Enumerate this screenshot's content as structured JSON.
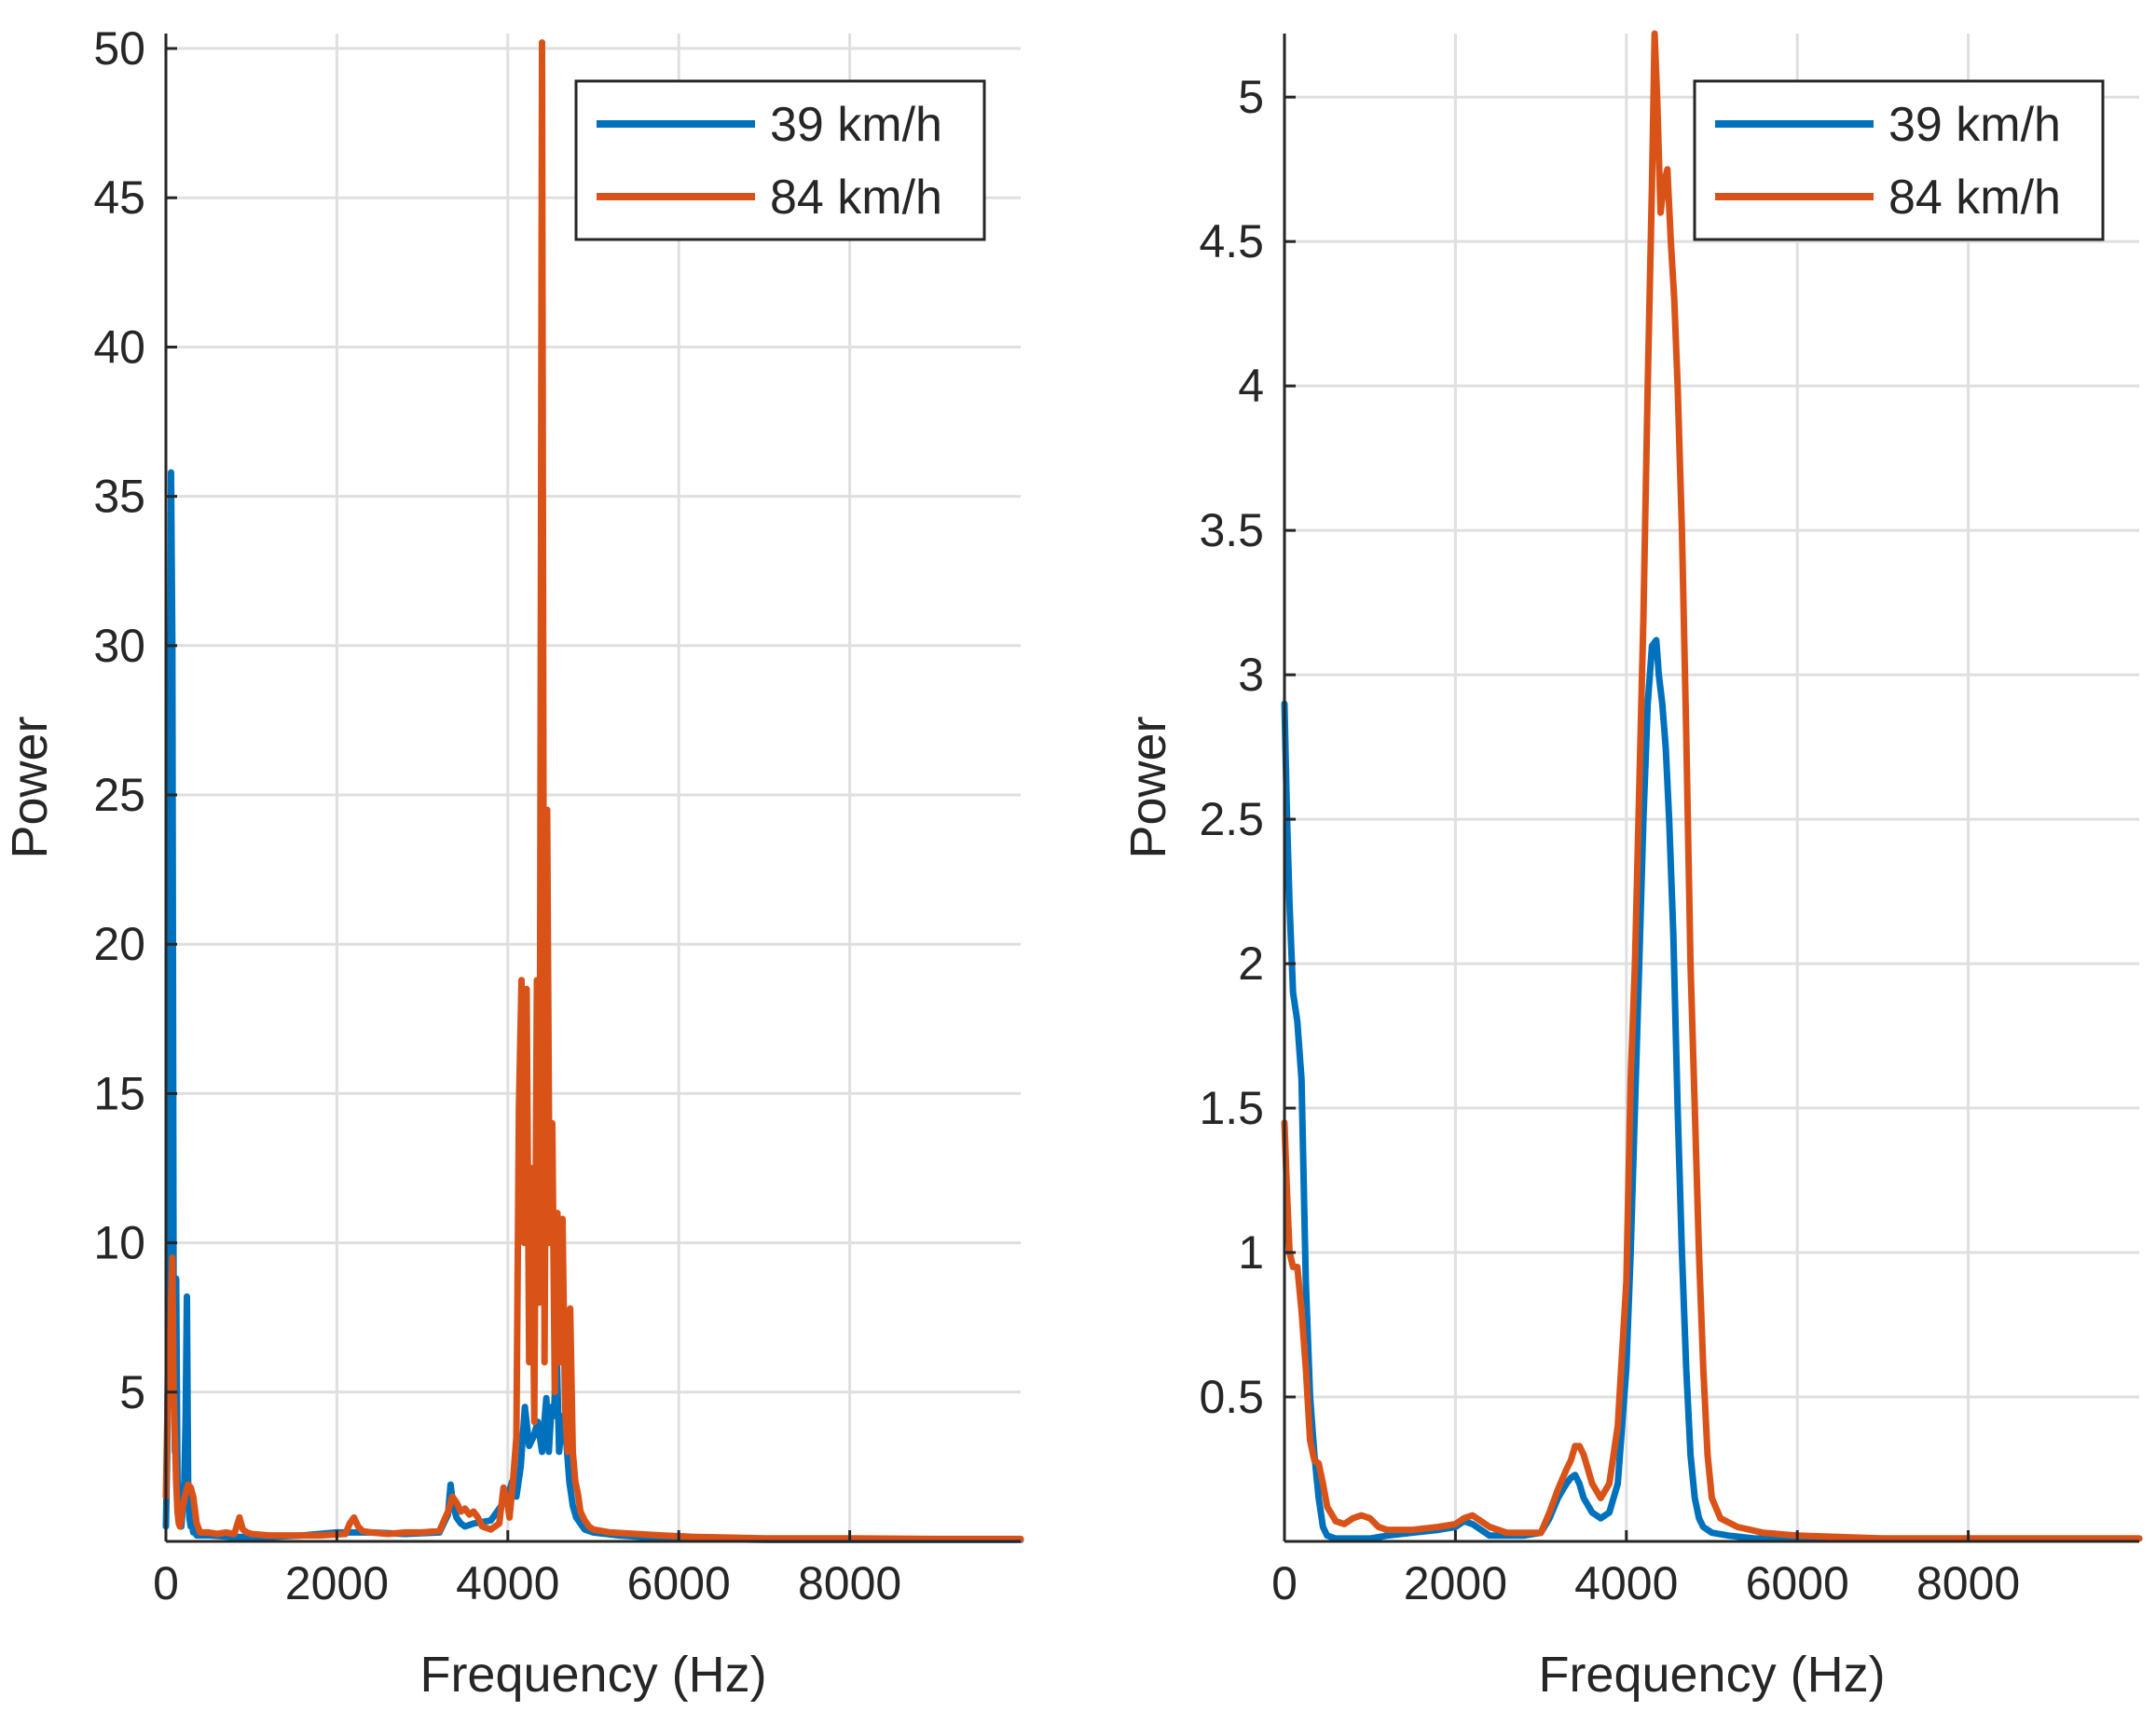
{
  "colors": {
    "series1": "#0072BD",
    "series2": "#D95319",
    "grid": "#dfdfdf",
    "axis": "#262626"
  },
  "chart_data": [
    {
      "type": "line",
      "title": "",
      "xlabel": "Frequency (Hz)",
      "ylabel": "Power",
      "xlim": [
        0,
        10000
      ],
      "ylim": [
        0,
        50.5
      ],
      "xticks": [
        0,
        2000,
        4000,
        6000,
        8000
      ],
      "xtick_labels": [
        "0",
        "2000",
        "4000",
        "6000",
        "8000"
      ],
      "yticks": [
        5,
        10,
        15,
        20,
        25,
        30,
        35,
        40,
        45,
        50
      ],
      "ytick_labels": [
        "5",
        "10",
        "15",
        "20",
        "25",
        "30",
        "35",
        "40",
        "45",
        "50"
      ],
      "grid": true,
      "legend": "top-right",
      "series": [
        {
          "name": "39 km/h",
          "x": [
            0,
            15,
            30,
            45,
            60,
            75,
            90,
            105,
            120,
            135,
            150,
            165,
            180,
            200,
            215,
            230,
            245,
            260,
            275,
            290,
            305,
            320,
            340,
            360,
            400,
            500,
            800,
            1200,
            1600,
            2000,
            2400,
            2800,
            3200,
            3300,
            3330,
            3360,
            3400,
            3450,
            3500,
            3600,
            3800,
            4000,
            4050,
            4100,
            4150,
            4200,
            4250,
            4300,
            4350,
            4400,
            4450,
            4480,
            4510,
            4540,
            4570,
            4600,
            4640,
            4680,
            4720,
            4760,
            4800,
            4850,
            4900,
            5000,
            5300,
            5600,
            6000,
            7000,
            8000,
            9000,
            10000
          ],
          "y": [
            0.5,
            3,
            9,
            20,
            35.8,
            30,
            7,
            3,
            8.8,
            2,
            1,
            0.6,
            0.5,
            1.2,
            2,
            4,
            8.2,
            2,
            0.8,
            0.5,
            0.6,
            0.3,
            0.4,
            0.2,
            0.2,
            0.2,
            0.15,
            0.15,
            0.2,
            0.3,
            0.3,
            0.25,
            0.3,
            0.9,
            1.9,
            1.2,
            0.8,
            0.6,
            0.5,
            0.6,
            0.7,
            1.5,
            2.0,
            1.5,
            2.5,
            4.5,
            3.2,
            3.5,
            4.0,
            3.0,
            4.8,
            3.0,
            4.5,
            4.2,
            6.5,
            3.0,
            4.2,
            3.5,
            2.0,
            1.2,
            0.8,
            0.6,
            0.4,
            0.3,
            0.2,
            0.15,
            0.1,
            0.05,
            0.05,
            0.05,
            0.05
          ]
        },
        {
          "name": "84 km/h",
          "x": [
            0,
            15,
            30,
            45,
            60,
            75,
            90,
            105,
            120,
            135,
            150,
            165,
            180,
            200,
            230,
            260,
            290,
            320,
            360,
            400,
            500,
            600,
            700,
            800,
            860,
            900,
            950,
            1000,
            1200,
            1500,
            1800,
            2100,
            2150,
            2200,
            2250,
            2300,
            2400,
            2600,
            2800,
            3000,
            3200,
            3300,
            3350,
            3400,
            3450,
            3500,
            3550,
            3600,
            3650,
            3700,
            3800,
            3900,
            3950,
            4000,
            4020,
            4060,
            4100,
            4130,
            4160,
            4190,
            4220,
            4250,
            4280,
            4310,
            4340,
            4370,
            4400,
            4430,
            4460,
            4490,
            4520,
            4550,
            4580,
            4610,
            4640,
            4670,
            4700,
            4730,
            4760,
            4790,
            4820,
            4850,
            4900,
            4950,
            5000,
            5200,
            5500,
            5800,
            6200,
            7000,
            8000,
            9000,
            10000
          ],
          "y": [
            1.5,
            4,
            7,
            5,
            8,
            9.5,
            5,
            3.5,
            2,
            1,
            0.6,
            0.5,
            0.8,
            1.2,
            1.6,
            1.9,
            1.8,
            1.5,
            0.6,
            0.3,
            0.3,
            0.25,
            0.3,
            0.25,
            0.8,
            0.4,
            0.3,
            0.25,
            0.2,
            0.2,
            0.2,
            0.25,
            0.6,
            0.8,
            0.5,
            0.35,
            0.3,
            0.25,
            0.3,
            0.3,
            0.35,
            1.0,
            1.5,
            1.3,
            1.0,
            1.1,
            0.9,
            1.0,
            0.8,
            0.5,
            0.4,
            0.6,
            1.8,
            1.2,
            0.8,
            2.0,
            3.5,
            14.5,
            18.8,
            10.0,
            18.5,
            6.0,
            12.5,
            4.0,
            18.8,
            8.0,
            50.2,
            6.0,
            24.5,
            10.0,
            14.0,
            5.0,
            11.0,
            6.0,
            10.8,
            4.5,
            3.0,
            7.8,
            3.0,
            2.0,
            1.6,
            1.0,
            0.7,
            0.5,
            0.4,
            0.3,
            0.25,
            0.2,
            0.15,
            0.1,
            0.1,
            0.08,
            0.08
          ]
        }
      ]
    },
    {
      "type": "line",
      "title": "",
      "xlabel": "Frequency (Hz)",
      "ylabel": "Power",
      "xlim": [
        0,
        10000
      ],
      "ylim": [
        0,
        5.22
      ],
      "xticks": [
        0,
        2000,
        4000,
        6000,
        8000
      ],
      "xtick_labels": [
        "0",
        "2000",
        "4000",
        "6000",
        "8000"
      ],
      "yticks": [
        0.5,
        1,
        1.5,
        2,
        2.5,
        3,
        3.5,
        4,
        4.5,
        5
      ],
      "ytick_labels": [
        "0.5",
        "1",
        "1.5",
        "2",
        "2.5",
        "3",
        "3.5",
        "4",
        "4.5",
        "5"
      ],
      "grid": true,
      "legend": "top-right",
      "series": [
        {
          "name": "39 km/h",
          "x": [
            0,
            30,
            60,
            100,
            150,
            200,
            250,
            300,
            350,
            400,
            450,
            500,
            600,
            800,
            1000,
            1200,
            1500,
            1800,
            2000,
            2100,
            2200,
            2300,
            2400,
            2600,
            2800,
            3000,
            3100,
            3200,
            3300,
            3350,
            3400,
            3450,
            3500,
            3600,
            3700,
            3800,
            3900,
            4000,
            4050,
            4100,
            4150,
            4200,
            4250,
            4300,
            4350,
            4380,
            4420,
            4460,
            4500,
            4550,
            4600,
            4650,
            4700,
            4750,
            4800,
            4850,
            4900,
            5000,
            5200,
            5500,
            6000,
            7000,
            8000,
            9000,
            10000
          ],
          "y": [
            2.9,
            2.5,
            2.2,
            1.9,
            1.8,
            1.6,
            0.9,
            0.5,
            0.3,
            0.15,
            0.05,
            0.02,
            0.01,
            0.01,
            0.01,
            0.02,
            0.03,
            0.04,
            0.05,
            0.07,
            0.06,
            0.04,
            0.02,
            0.02,
            0.02,
            0.03,
            0.08,
            0.15,
            0.2,
            0.22,
            0.23,
            0.2,
            0.15,
            0.1,
            0.08,
            0.1,
            0.2,
            0.6,
            1.0,
            1.5,
            2.0,
            2.5,
            2.9,
            3.1,
            3.12,
            3.0,
            2.9,
            2.75,
            2.5,
            2.1,
            1.5,
            1.0,
            0.6,
            0.3,
            0.15,
            0.08,
            0.05,
            0.03,
            0.02,
            0.01,
            0.01,
            0.01,
            0.01,
            0.01,
            0.01
          ]
        },
        {
          "name": "84 km/h",
          "x": [
            0,
            30,
            60,
            100,
            150,
            200,
            250,
            300,
            350,
            400,
            450,
            500,
            600,
            700,
            800,
            900,
            1000,
            1100,
            1200,
            1500,
            1800,
            2000,
            2100,
            2200,
            2300,
            2400,
            2600,
            2800,
            3000,
            3100,
            3200,
            3300,
            3350,
            3400,
            3450,
            3500,
            3600,
            3700,
            3800,
            3900,
            4000,
            4050,
            4100,
            4150,
            4200,
            4250,
            4300,
            4330,
            4360,
            4400,
            4440,
            4480,
            4520,
            4560,
            4600,
            4650,
            4700,
            4750,
            4800,
            4850,
            4900,
            4950,
            5000,
            5100,
            5300,
            5600,
            6000,
            7000,
            8000,
            9000,
            10000
          ],
          "y": [
            1.45,
            1.2,
            1.0,
            0.95,
            0.95,
            0.8,
            0.6,
            0.35,
            0.28,
            0.27,
            0.2,
            0.12,
            0.07,
            0.06,
            0.08,
            0.09,
            0.08,
            0.05,
            0.04,
            0.04,
            0.05,
            0.06,
            0.08,
            0.09,
            0.07,
            0.05,
            0.03,
            0.03,
            0.03,
            0.1,
            0.18,
            0.25,
            0.28,
            0.33,
            0.33,
            0.3,
            0.2,
            0.15,
            0.2,
            0.4,
            0.9,
            1.6,
            2.0,
            2.6,
            3.2,
            4.0,
            4.7,
            5.22,
            5.0,
            4.6,
            4.7,
            4.75,
            4.5,
            4.3,
            4.0,
            3.5,
            2.8,
            2.0,
            1.5,
            1.0,
            0.6,
            0.3,
            0.15,
            0.08,
            0.05,
            0.03,
            0.02,
            0.01,
            0.01,
            0.01,
            0.01
          ]
        }
      ]
    }
  ]
}
